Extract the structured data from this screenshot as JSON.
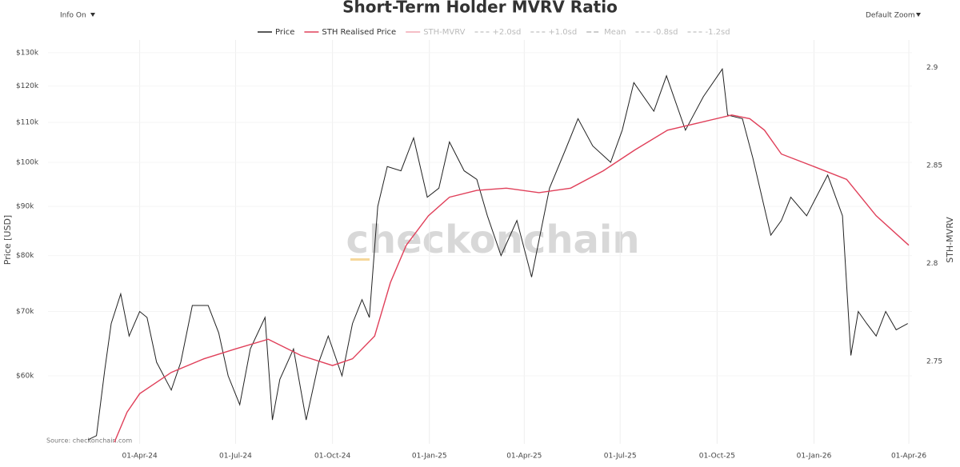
{
  "controls": {
    "info": "Info On",
    "zoom": "Default Zoom"
  },
  "chart_data": {
    "type": "line",
    "title": "Short-Term Holder MVRV Ratio",
    "ylabel": "Price [USD]",
    "y2label": "STH-MVRV",
    "source": "Source: checkonchain.com",
    "watermark": "checkonchain",
    "log_y": true,
    "grid": true,
    "xlim": [
      "2024-01-05",
      "2026-04-04"
    ],
    "xticks": [
      {
        "value": "2024-04-01",
        "label": "01-Apr-24"
      },
      {
        "value": "2024-07-01",
        "label": "01-Jul-24"
      },
      {
        "value": "2024-10-01",
        "label": "01-Oct-24"
      },
      {
        "value": "2025-01-01",
        "label": "01-Jan-25"
      },
      {
        "value": "2025-04-01",
        "label": "01-Apr-25"
      },
      {
        "value": "2025-07-01",
        "label": "01-Jul-25"
      },
      {
        "value": "2025-10-01",
        "label": "01-Oct-25"
      },
      {
        "value": "2026-01-01",
        "label": "01-Jan-26"
      },
      {
        "value": "2026-04-01",
        "label": "01-Apr-26"
      }
    ],
    "ylim": [
      51000,
      134000
    ],
    "yticks": [
      {
        "value": 60000,
        "label": "$60k"
      },
      {
        "value": 70000,
        "label": "$70k"
      },
      {
        "value": 80000,
        "label": "$80k"
      },
      {
        "value": 90000,
        "label": "$90k"
      },
      {
        "value": 100000,
        "label": "$100k"
      },
      {
        "value": 110000,
        "label": "$110k"
      },
      {
        "value": 120000,
        "label": "$120k"
      },
      {
        "value": 130000,
        "label": "$130k"
      }
    ],
    "y2lim": [
      2.708,
      2.914
    ],
    "y2ticks": [
      2.75,
      2.8,
      2.85,
      2.9
    ],
    "series": [
      {
        "name": "Price",
        "color": "#222222",
        "x": [
          "2024-02-12",
          "2024-02-20",
          "2024-02-28",
          "2024-03-05",
          "2024-03-14",
          "2024-03-22",
          "2024-04-01",
          "2024-04-08",
          "2024-04-17",
          "2024-05-01",
          "2024-05-10",
          "2024-05-21",
          "2024-06-05",
          "2024-06-15",
          "2024-06-24",
          "2024-07-05",
          "2024-07-15",
          "2024-07-29",
          "2024-08-05",
          "2024-08-12",
          "2024-08-25",
          "2024-09-06",
          "2024-09-18",
          "2024-09-27",
          "2024-10-10",
          "2024-10-20",
          "2024-10-29",
          "2024-11-05",
          "2024-11-13",
          "2024-11-22",
          "2024-12-05",
          "2024-12-17",
          "2024-12-30",
          "2025-01-10",
          "2025-01-20",
          "2025-02-03",
          "2025-02-15",
          "2025-02-25",
          "2025-03-10",
          "2025-03-25",
          "2025-04-08",
          "2025-04-25",
          "2025-05-10",
          "2025-05-22",
          "2025-06-05",
          "2025-06-22",
          "2025-07-03",
          "2025-07-14",
          "2025-08-02",
          "2025-08-14",
          "2025-09-01",
          "2025-09-18",
          "2025-10-06",
          "2025-10-11",
          "2025-10-25",
          "2025-11-04",
          "2025-11-21",
          "2025-12-01",
          "2025-12-10",
          "2025-12-25",
          "2026-01-14",
          "2026-01-28",
          "2026-02-05",
          "2026-02-12",
          "2026-02-20",
          "2026-03-01",
          "2026-03-10",
          "2026-03-20",
          "2026-03-31"
        ],
        "values": [
          51500,
          52000,
          61000,
          68000,
          73000,
          66000,
          70000,
          69000,
          62000,
          58000,
          62000,
          71000,
          71000,
          66500,
          60000,
          56000,
          64000,
          69000,
          54000,
          59500,
          64000,
          54000,
          62000,
          66000,
          60000,
          68000,
          72000,
          69000,
          90000,
          99000,
          98000,
          106000,
          92000,
          94000,
          105000,
          98000,
          96000,
          88000,
          80000,
          87000,
          76000,
          94000,
          103000,
          111000,
          104000,
          100000,
          108000,
          121000,
          113000,
          123000,
          108000,
          117000,
          125000,
          112000,
          111000,
          101000,
          84000,
          87000,
          92000,
          88000,
          97000,
          88000,
          63000,
          70000,
          68000,
          66000,
          70000,
          67000,
          68000
        ]
      },
      {
        "name": "STH Realised Price",
        "color": "#e0405a",
        "x": [
          "2024-03-08",
          "2024-03-20",
          "2024-04-01",
          "2024-05-01",
          "2024-06-01",
          "2024-07-01",
          "2024-08-01",
          "2024-09-01",
          "2024-10-01",
          "2024-10-20",
          "2024-11-10",
          "2024-11-25",
          "2024-12-10",
          "2024-12-31",
          "2025-01-20",
          "2025-02-15",
          "2025-03-15",
          "2025-04-15",
          "2025-05-15",
          "2025-06-15",
          "2025-07-15",
          "2025-08-15",
          "2025-09-15",
          "2025-10-15",
          "2025-11-01",
          "2025-11-15",
          "2025-12-01",
          "2026-01-01",
          "2026-02-01",
          "2026-03-01",
          "2026-04-01"
        ],
        "values": [
          51200,
          55000,
          57500,
          60500,
          62500,
          64000,
          65500,
          63000,
          61500,
          62500,
          66000,
          75000,
          82000,
          88000,
          92000,
          93500,
          94000,
          93000,
          94000,
          98000,
          103000,
          108000,
          110000,
          112000,
          111000,
          108000,
          102000,
          99000,
          96000,
          88000,
          82000
        ]
      },
      {
        "name": "STH-MVRV",
        "color": "#f2a8b4",
        "dash": "none"
      },
      {
        "name": "+2.0sd",
        "color": "#cccccc",
        "dash": "4 3"
      },
      {
        "name": "+1.0sd",
        "color": "#cccccc",
        "dash": "4 3"
      },
      {
        "name": "Mean",
        "color": "#bbbbbb",
        "dash": "6 3"
      },
      {
        "name": "-0.8sd",
        "color": "#cccccc",
        "dash": "4 3"
      },
      {
        "name": "-1.2sd",
        "color": "#cccccc",
        "dash": "4 3"
      }
    ]
  }
}
